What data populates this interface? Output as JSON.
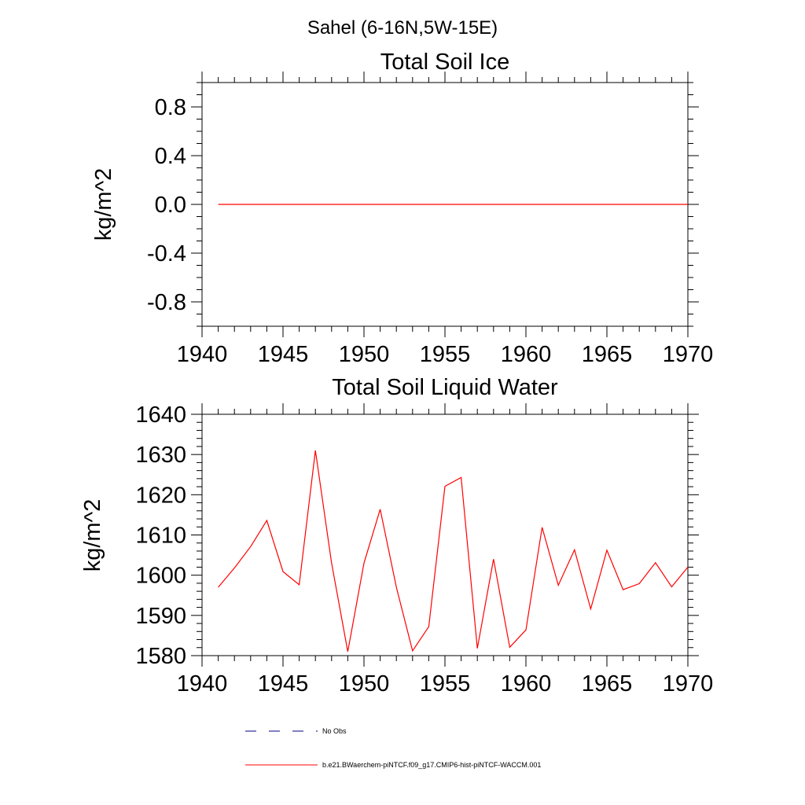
{
  "page": {
    "suptitle": "Sahel (6-16N,5W-15E)"
  },
  "chart_data": [
    {
      "type": "line",
      "title": "Total Soil Ice",
      "xlabel": "",
      "ylabel": "kg/m^2",
      "xlim": [
        1940,
        1970
      ],
      "ylim": [
        -1.0,
        1.0
      ],
      "x_ticks": [
        1940,
        1945,
        1950,
        1955,
        1960,
        1965,
        1970
      ],
      "x_tick_labels": [
        "1940",
        "1945",
        "1950",
        "1955",
        "1960",
        "1965",
        "1970"
      ],
      "y_ticks": [
        -0.8,
        -0.4,
        0.0,
        0.4,
        0.8
      ],
      "y_tick_labels": [
        "-0.8",
        "-0.4",
        "0.0",
        "0.4",
        "0.8"
      ],
      "grid": false,
      "series": [
        {
          "name": "b.e21.BWaerchem-piNTCF.f09_g17.CMIP6-hist-piNTCF-WACCM.001",
          "color": "#ff0000",
          "x": [
            1941,
            1942,
            1943,
            1944,
            1945,
            1946,
            1947,
            1948,
            1949,
            1950,
            1951,
            1952,
            1953,
            1954,
            1955,
            1956,
            1957,
            1958,
            1959,
            1960,
            1961,
            1962,
            1963,
            1964,
            1965,
            1966,
            1967,
            1968,
            1969,
            1970
          ],
          "values": [
            0,
            0,
            0,
            0,
            0,
            0,
            0,
            0,
            0,
            0,
            0,
            0,
            0,
            0,
            0,
            0,
            0,
            0,
            0,
            0,
            0,
            0,
            0,
            0,
            0,
            0,
            0,
            0,
            0,
            0
          ]
        }
      ]
    },
    {
      "type": "line",
      "title": "Total Soil Liquid Water",
      "xlabel": "",
      "ylabel": "kg/m^2",
      "xlim": [
        1940,
        1970
      ],
      "ylim": [
        1580,
        1640
      ],
      "x_ticks": [
        1940,
        1945,
        1950,
        1955,
        1960,
        1965,
        1970
      ],
      "x_tick_labels": [
        "1940",
        "1945",
        "1950",
        "1955",
        "1960",
        "1965",
        "1970"
      ],
      "y_ticks": [
        1580,
        1590,
        1600,
        1610,
        1620,
        1630,
        1640
      ],
      "y_tick_labels": [
        "1580",
        "1590",
        "1600",
        "1610",
        "1620",
        "1630",
        "1640"
      ],
      "grid": false,
      "series": [
        {
          "name": "b.e21.BWaerchem-piNTCF.f09_g17.CMIP6-hist-piNTCF-WACCM.001",
          "color": "#ff0000",
          "x": [
            1941,
            1942,
            1943,
            1944,
            1945,
            1946,
            1947,
            1948,
            1949,
            1950,
            1951,
            1952,
            1953,
            1954,
            1955,
            1956,
            1957,
            1958,
            1959,
            1960,
            1961,
            1962,
            1963,
            1964,
            1965,
            1966,
            1967,
            1968,
            1969,
            1970
          ],
          "values": [
            1597.0,
            1601.8,
            1607.1,
            1613.6,
            1600.9,
            1597.6,
            1631.0,
            1603.0,
            1581.0,
            1603.0,
            1616.4,
            1597.0,
            1581.2,
            1587.2,
            1622.1,
            1624.3,
            1581.8,
            1604.0,
            1582.1,
            1586.4,
            1611.9,
            1597.5,
            1606.3,
            1591.6,
            1606.2,
            1596.4,
            1597.9,
            1603.1,
            1597.1,
            1602.0
          ]
        }
      ]
    }
  ],
  "legend": {
    "placement": "bottom-center",
    "items": [
      {
        "label": "No Obs",
        "color": "#000080",
        "style": "dashed"
      },
      {
        "label": "b.e21.BWaerchem-piNTCF.f09_g17.CMIP6-hist-piNTCF-WACCM.001",
        "color": "#ff0000",
        "style": "solid"
      }
    ]
  }
}
